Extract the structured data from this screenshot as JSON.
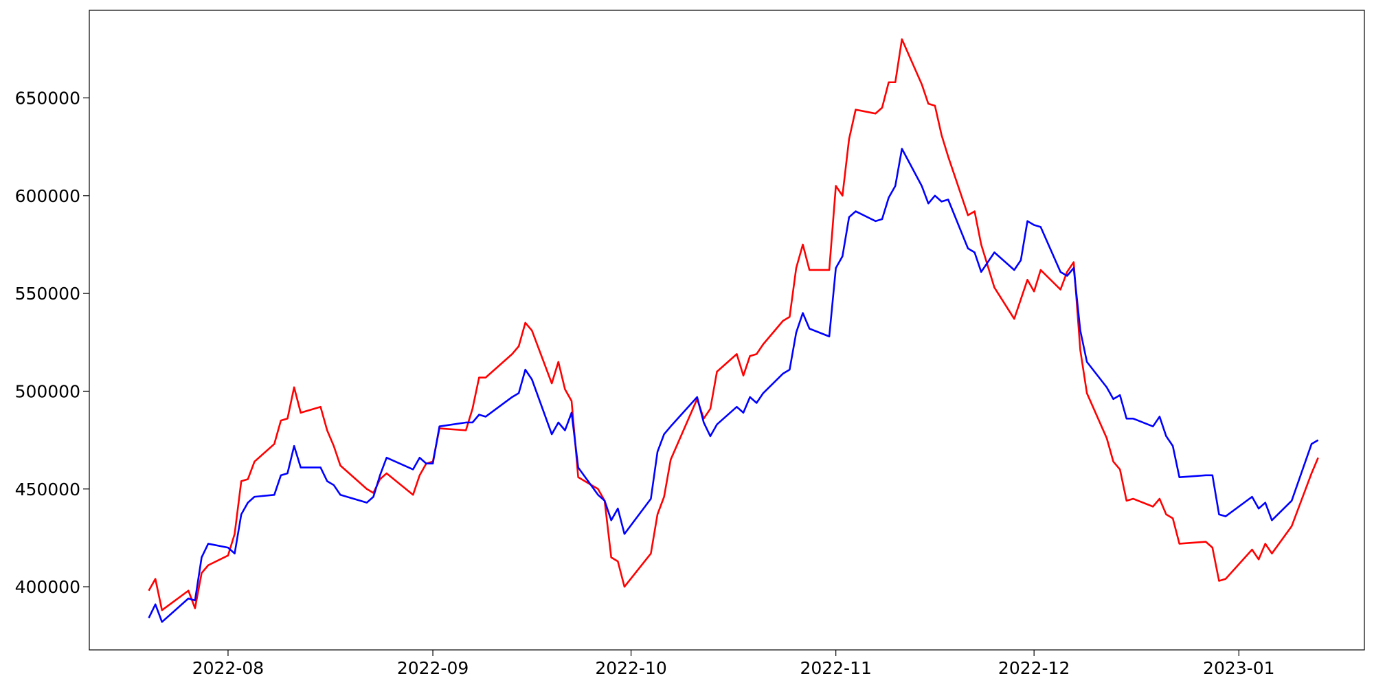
{
  "chart_data": {
    "type": "line",
    "x": [
      "2022-07-20",
      "2022-07-21",
      "2022-07-22",
      "2022-07-26",
      "2022-07-27",
      "2022-07-28",
      "2022-07-29",
      "2022-08-01",
      "2022-08-02",
      "2022-08-03",
      "2022-08-04",
      "2022-08-05",
      "2022-08-08",
      "2022-08-09",
      "2022-08-10",
      "2022-08-11",
      "2022-08-12",
      "2022-08-15",
      "2022-08-16",
      "2022-08-17",
      "2022-08-18",
      "2022-08-22",
      "2022-08-23",
      "2022-08-24",
      "2022-08-25",
      "2022-08-29",
      "2022-08-30",
      "2022-08-31",
      "2022-09-01",
      "2022-09-02",
      "2022-09-06",
      "2022-09-07",
      "2022-09-08",
      "2022-09-09",
      "2022-09-13",
      "2022-09-14",
      "2022-09-15",
      "2022-09-16",
      "2022-09-19",
      "2022-09-20",
      "2022-09-21",
      "2022-09-22",
      "2022-09-23",
      "2022-09-26",
      "2022-09-27",
      "2022-09-28",
      "2022-09-29",
      "2022-09-30",
      "2022-10-04",
      "2022-10-05",
      "2022-10-06",
      "2022-10-07",
      "2022-10-11",
      "2022-10-12",
      "2022-10-13",
      "2022-10-14",
      "2022-10-17",
      "2022-10-18",
      "2022-10-19",
      "2022-10-20",
      "2022-10-21",
      "2022-10-24",
      "2022-10-25",
      "2022-10-26",
      "2022-10-27",
      "2022-10-28",
      "2022-10-31",
      "2022-11-01",
      "2022-11-02",
      "2022-11-03",
      "2022-11-04",
      "2022-11-07",
      "2022-11-08",
      "2022-11-09",
      "2022-11-10",
      "2022-11-11",
      "2022-11-14",
      "2022-11-15",
      "2022-11-16",
      "2022-11-17",
      "2022-11-18",
      "2022-11-21",
      "2022-11-22",
      "2022-11-23",
      "2022-11-25",
      "2022-11-28",
      "2022-11-29",
      "2022-11-30",
      "2022-12-01",
      "2022-12-02",
      "2022-12-05",
      "2022-12-06",
      "2022-12-07",
      "2022-12-08",
      "2022-12-09",
      "2022-12-12",
      "2022-12-13",
      "2022-12-14",
      "2022-12-15",
      "2022-12-16",
      "2022-12-19",
      "2022-12-20",
      "2022-12-21",
      "2022-12-22",
      "2022-12-23",
      "2022-12-27",
      "2022-12-28",
      "2022-12-29",
      "2022-12-30",
      "2023-01-03",
      "2023-01-04",
      "2023-01-05",
      "2023-01-06",
      "2023-01-09",
      "2023-01-12",
      "2023-01-13"
    ],
    "series": [
      {
        "color": "#ff0000",
        "values": [
          398000,
          404000,
          388000,
          398000,
          389000,
          407000,
          411000,
          416000,
          427000,
          454000,
          455000,
          464000,
          473000,
          485000,
          486000,
          502000,
          489000,
          492000,
          480000,
          472000,
          462000,
          450000,
          448000,
          455000,
          458000,
          447000,
          457000,
          463000,
          464000,
          481000,
          480000,
          491000,
          507000,
          507000,
          519000,
          523000,
          535000,
          531000,
          504000,
          515000,
          501000,
          495000,
          456000,
          450000,
          444000,
          415000,
          413000,
          400000,
          417000,
          437000,
          446000,
          465000,
          496000,
          486000,
          491000,
          510000,
          519000,
          508000,
          518000,
          519000,
          524000,
          536000,
          538000,
          563000,
          575000,
          562000,
          562000,
          605000,
          600000,
          629000,
          644000,
          642000,
          645000,
          658000,
          658000,
          680000,
          657000,
          647000,
          646000,
          631000,
          620000,
          590000,
          592000,
          575000,
          553000,
          537000,
          547000,
          557000,
          551000,
          562000,
          552000,
          561000,
          566000,
          521000,
          499000,
          476000,
          464000,
          460000,
          444000,
          445000,
          441000,
          445000,
          437000,
          435000,
          422000,
          423000,
          420000,
          403000,
          404000,
          419000,
          414000,
          422000,
          417000,
          431000,
          458000,
          466000
        ]
      },
      {
        "color": "#0000ff",
        "values": [
          384000,
          391000,
          382000,
          394000,
          393000,
          415000,
          422000,
          420000,
          417000,
          437000,
          443000,
          446000,
          447000,
          457000,
          458000,
          472000,
          461000,
          461000,
          454000,
          452000,
          447000,
          443000,
          446000,
          457000,
          466000,
          460000,
          466000,
          463000,
          463000,
          482000,
          484000,
          484000,
          488000,
          487000,
          497000,
          499000,
          511000,
          506000,
          478000,
          484000,
          480000,
          489000,
          461000,
          447000,
          444000,
          434000,
          440000,
          427000,
          445000,
          469000,
          478000,
          482000,
          497000,
          484000,
          477000,
          483000,
          492000,
          489000,
          497000,
          494000,
          499000,
          509000,
          511000,
          530000,
          540000,
          532000,
          528000,
          563000,
          569000,
          589000,
          592000,
          587000,
          588000,
          599000,
          605000,
          624000,
          605000,
          596000,
          600000,
          597000,
          598000,
          573000,
          571000,
          561000,
          571000,
          562000,
          567000,
          587000,
          585000,
          584000,
          561000,
          559000,
          563000,
          531000,
          515000,
          502000,
          496000,
          498000,
          486000,
          486000,
          482000,
          487000,
          477000,
          472000,
          456000,
          457000,
          457000,
          437000,
          436000,
          446000,
          440000,
          443000,
          434000,
          444000,
          473000,
          475000
        ]
      }
    ],
    "xlim": [
      "2022-07-11",
      "2023-01-20"
    ],
    "xticks": [
      {
        "value": "2022-08-01",
        "label": "2022-08"
      },
      {
        "value": "2022-09-01",
        "label": "2022-09"
      },
      {
        "value": "2022-10-01",
        "label": "2022-10"
      },
      {
        "value": "2022-11-01",
        "label": "2022-11"
      },
      {
        "value": "2022-12-01",
        "label": "2022-12"
      },
      {
        "value": "2023-01-01",
        "label": "2023-01"
      }
    ],
    "ylim": [
      367700,
      694800
    ],
    "yticks": [
      400000,
      450000,
      500000,
      550000,
      600000,
      650000
    ]
  }
}
